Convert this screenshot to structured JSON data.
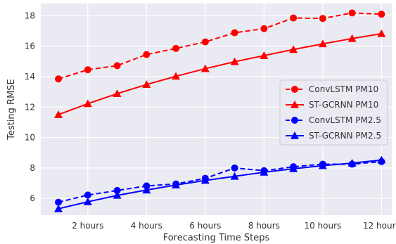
{
  "chart_data": {
    "type": "line",
    "title": "",
    "xlabel": "Forecasting Time Steps",
    "ylabel": "Testing RMSE",
    "x": [
      1,
      2,
      3,
      4,
      5,
      6,
      7,
      8,
      9,
      10,
      11,
      12
    ],
    "x_ticks": [
      {
        "value": 2,
        "label": "2 hours"
      },
      {
        "value": 4,
        "label": "4 hours"
      },
      {
        "value": 6,
        "label": "6 hours"
      },
      {
        "value": 8,
        "label": "8 hours"
      },
      {
        "value": 10,
        "label": "10 hours"
      },
      {
        "value": 12,
        "label": "12 hours"
      }
    ],
    "y_ticks": [
      6,
      8,
      10,
      12,
      14,
      16,
      18
    ],
    "xlim": [
      0.4,
      12.35
    ],
    "ylim": [
      4.9,
      18.8
    ],
    "grid": true,
    "background": "#eaeaf2",
    "legend_position": "center-right",
    "series": [
      {
        "name": "ConvLSTM PM10",
        "color": "#ff0000",
        "line_style": "dashed",
        "marker": "circle",
        "values": [
          13.85,
          14.45,
          14.72,
          15.45,
          15.85,
          16.28,
          16.88,
          17.15,
          17.85,
          17.82,
          18.18,
          18.1
        ]
      },
      {
        "name": "ST-GCRNN PM10",
        "color": "#ff0000",
        "line_style": "solid",
        "marker": "triangle",
        "values": [
          11.5,
          12.22,
          12.88,
          13.48,
          14.02,
          14.52,
          14.98,
          15.38,
          15.78,
          16.15,
          16.5,
          16.82
        ]
      },
      {
        "name": "ConvLSTM PM2.5",
        "color": "#0000ff",
        "line_style": "dashed",
        "marker": "circle",
        "values": [
          5.75,
          6.22,
          6.52,
          6.82,
          6.95,
          7.32,
          8.0,
          7.82,
          8.08,
          8.25,
          8.25,
          8.42
        ]
      },
      {
        "name": "ST-GCRNN PM2.5",
        "color": "#0000ff",
        "line_style": "solid",
        "marker": "triangle",
        "values": [
          5.32,
          5.78,
          6.2,
          6.55,
          6.88,
          7.18,
          7.45,
          7.72,
          7.95,
          8.15,
          8.32,
          8.52
        ]
      }
    ]
  }
}
